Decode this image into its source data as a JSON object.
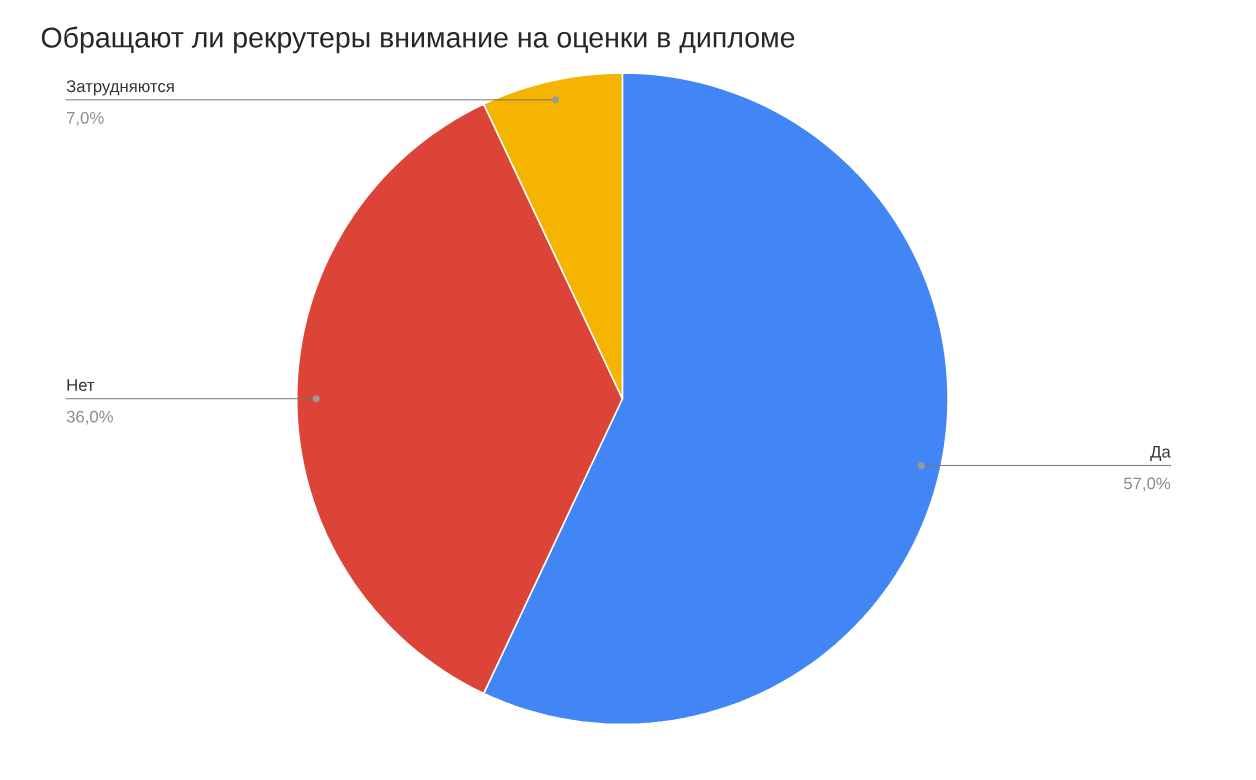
{
  "chart_data": {
    "type": "pie",
    "title": "Обращают ли рекрутеры внимание на оценки в дипломе",
    "categories": [
      "Да",
      "Нет",
      "Затрудняются"
    ],
    "values": [
      57,
      36,
      7
    ],
    "value_labels": [
      "57,0%",
      "36,0%",
      "7,0%"
    ],
    "colors": [
      "#4285f4",
      "#db4437",
      "#f4b400"
    ]
  }
}
